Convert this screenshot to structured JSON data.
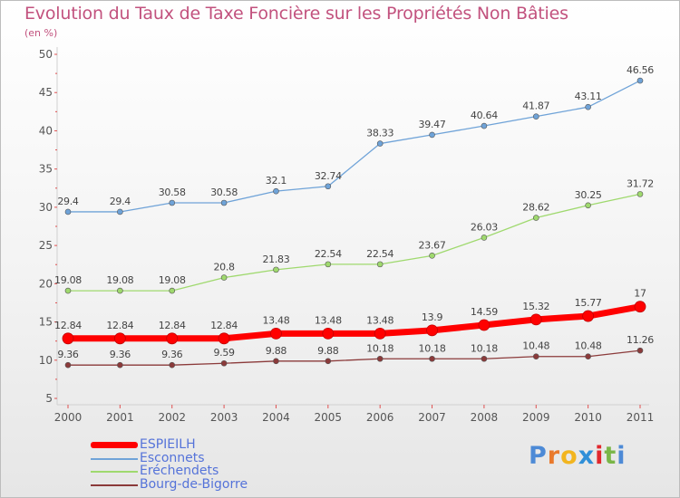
{
  "title": "Evolution du Taux de Taxe Foncière sur les Propriétés Non Bâties",
  "subtitle": "(en %)",
  "logo": {
    "letters": [
      "P",
      "r",
      "o",
      "x",
      "i",
      "t",
      "i"
    ],
    "colors": [
      "#4d8ad6",
      "#e9792b",
      "#f2b51f",
      "#2f8fd8",
      "#e1282d",
      "#7ab648",
      "#4d8ad6"
    ]
  },
  "chart_data": {
    "type": "line",
    "x": [
      "2000",
      "2001",
      "2002",
      "2003",
      "2004",
      "2005",
      "2006",
      "2007",
      "2008",
      "2009",
      "2010",
      "2011"
    ],
    "ylim": [
      5,
      50
    ],
    "yticks": [
      "5",
      "10",
      "15",
      "20",
      "25",
      "30",
      "35",
      "40",
      "45",
      "50"
    ],
    "grid": false,
    "legend_position": "bottom-left",
    "series": [
      {
        "name": "ESPIEILH",
        "color": "#ff0000",
        "values": [
          12.84,
          12.84,
          12.84,
          12.84,
          13.48,
          13.48,
          13.48,
          13.9,
          14.59,
          15.32,
          15.77,
          17
        ],
        "labels": [
          "12.84",
          "12.84",
          "12.84",
          "12.84",
          "13.48",
          "13.48",
          "13.48",
          "13.9",
          "14.59",
          "15.32",
          "15.77",
          "17"
        ]
      },
      {
        "name": "Esconnets",
        "color": "#6fa3d8",
        "values": [
          29.4,
          29.4,
          30.58,
          30.58,
          32.1,
          32.74,
          38.33,
          39.47,
          40.64,
          41.87,
          43.11,
          46.56
        ],
        "labels": [
          "29.4",
          "29.4",
          "30.58",
          "30.58",
          "32.1",
          "32.74",
          "38.33",
          "39.47",
          "40.64",
          "41.87",
          "43.11",
          "46.56"
        ]
      },
      {
        "name": "Eréchendets",
        "color": "#9fd96e",
        "values": [
          19.08,
          19.08,
          19.08,
          20.8,
          21.83,
          22.54,
          22.54,
          23.67,
          26.03,
          28.62,
          30.25,
          31.72
        ],
        "labels": [
          "19.08",
          "19.08",
          "19.08",
          "20.8",
          "21.83",
          "22.54",
          "22.54",
          "23.67",
          "26.03",
          "28.62",
          "30.25",
          "31.72"
        ]
      },
      {
        "name": "Bourg-de-Bigorre",
        "color": "#8b3a3a",
        "values": [
          9.36,
          9.36,
          9.36,
          9.59,
          9.88,
          9.88,
          10.18,
          10.18,
          10.18,
          10.48,
          10.48,
          11.26
        ],
        "labels": [
          "9.36",
          "9.36",
          "9.36",
          "9.59",
          "9.88",
          "9.88",
          "10.18",
          "10.18",
          "10.18",
          "10.48",
          "10.48",
          "11.26"
        ]
      }
    ]
  }
}
